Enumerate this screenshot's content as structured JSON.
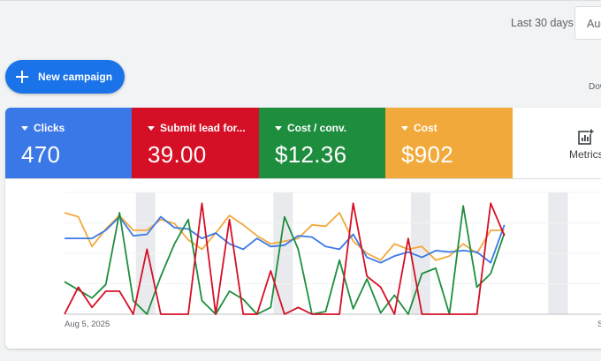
{
  "header": {
    "date_range_label": "Last 30 days",
    "date_button_text": "Aug"
  },
  "toolbar": {
    "new_campaign_label": "New campaign",
    "download_label": "Dow"
  },
  "scorecards": [
    {
      "label": "Clicks",
      "value": "470",
      "color": "#3b78e7"
    },
    {
      "label": "Submit lead for...",
      "value": "39.00",
      "color": "#d50f25"
    },
    {
      "label": "Cost / conv.",
      "value": "$12.36",
      "color": "#1e8e3e"
    },
    {
      "label": "Cost",
      "value": "$902",
      "color": "#f2a93b"
    }
  ],
  "metrics_button": {
    "label": "Metrics",
    "icon": "add-chart-icon"
  },
  "chart_data": {
    "type": "line",
    "x_start_label": "Aug 5, 2025",
    "x_end_label": "S",
    "grid": true,
    "series": [
      {
        "color": "#f2a93b",
        "values": [
          75,
          72,
          50,
          63,
          73,
          62,
          62,
          70,
          67,
          55,
          48,
          60,
          73,
          66,
          58,
          52,
          54,
          56,
          66,
          65,
          75,
          54,
          45,
          40,
          52,
          48,
          50,
          40,
          43,
          52,
          45,
          62,
          62
        ]
      },
      {
        "color": "#3b78e7",
        "values": [
          56,
          56,
          56,
          62,
          72,
          58,
          59,
          72,
          64,
          63,
          56,
          60,
          52,
          48,
          56,
          50,
          51,
          58,
          57,
          50,
          48,
          59,
          42,
          38,
          43,
          46,
          42,
          47,
          46,
          47,
          46,
          38,
          66
        ]
      },
      {
        "color": "#1e8e3e",
        "values": [
          24,
          18,
          12,
          22,
          75,
          10,
          0,
          28,
          52,
          70,
          10,
          0,
          17,
          11,
          0,
          5,
          72,
          48,
          0,
          2,
          40,
          4,
          26,
          1,
          14,
          0,
          30,
          34,
          0,
          80,
          20,
          30,
          60
        ]
      },
      {
        "color": "#d50f25",
        "values": [
          0,
          20,
          5,
          17,
          17,
          0,
          48,
          0,
          0,
          0,
          82,
          0,
          70,
          0,
          0,
          32,
          0,
          5,
          0,
          0,
          0,
          82,
          28,
          20,
          0,
          56,
          0,
          0,
          0,
          0,
          0,
          82,
          58
        ]
      }
    ],
    "shaded_bands": [
      [
        5,
        6
      ],
      [
        15,
        16
      ],
      [
        25,
        26
      ],
      [
        35,
        36
      ]
    ]
  }
}
